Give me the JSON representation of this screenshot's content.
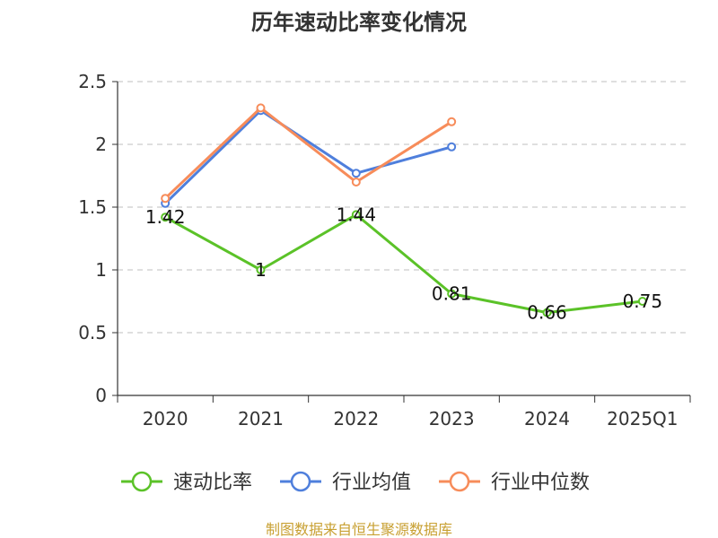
{
  "chart_data": {
    "type": "line",
    "title": "历年速动比率变化情况",
    "categories": [
      "2020",
      "2021",
      "2022",
      "2023",
      "2024",
      "2025Q1"
    ],
    "ylim": [
      0,
      2.5
    ],
    "yticks": [
      "0",
      "0.5",
      "1",
      "1.5",
      "2",
      "2.5"
    ],
    "grid": true,
    "legend_position": "bottom",
    "series": [
      {
        "name": "速动比率",
        "color": "#5bc228",
        "values": [
          1.42,
          1,
          1.44,
          0.81,
          0.66,
          0.75
        ],
        "labels": [
          "1.42",
          "1",
          "1.44",
          "0.81",
          "0.66",
          "0.75"
        ]
      },
      {
        "name": "行业均值",
        "color": "#4f7fdc",
        "values": [
          1.53,
          2.27,
          1.77,
          1.98,
          null,
          null
        ]
      },
      {
        "name": "行业中位数",
        "color": "#f78c5a",
        "values": [
          1.57,
          2.29,
          1.7,
          2.18,
          null,
          null
        ]
      }
    ],
    "source": "制图数据来自恒生聚源数据库"
  }
}
